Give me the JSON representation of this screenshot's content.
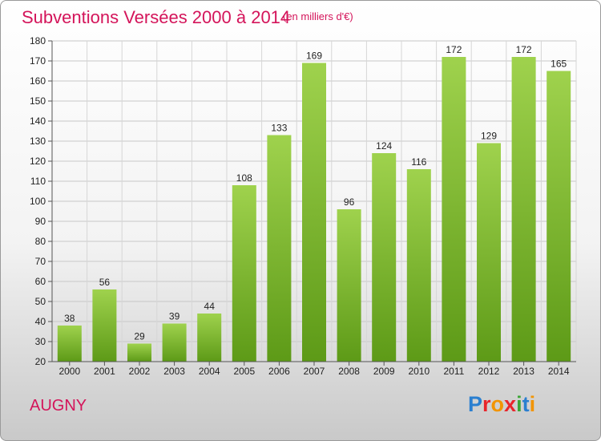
{
  "header": {
    "title": "Subventions Versées 2000 à 2014",
    "subtitle": "(en milliers d'€)"
  },
  "commune": "AUGNY",
  "logo": {
    "text": "Proxiti",
    "letters": [
      "P",
      "r",
      "o",
      "x",
      "i",
      "t",
      "i"
    ]
  },
  "colors": {
    "accent": "#d4145a",
    "bar_top": "#9fd24d",
    "bar_bottom": "#5d9a17",
    "logo": [
      "#2a7fd0",
      "#e8252b",
      "#f29400",
      "#e8252b",
      "#3aa635",
      "#2a7fd0",
      "#f29400"
    ]
  },
  "chart_data": {
    "type": "bar",
    "categories": [
      "2000",
      "2001",
      "2002",
      "2003",
      "2004",
      "2005",
      "2006",
      "2007",
      "2008",
      "2009",
      "2010",
      "2011",
      "2012",
      "2013",
      "2014"
    ],
    "values": [
      38,
      56,
      29,
      39,
      44,
      108,
      133,
      169,
      96,
      124,
      116,
      172,
      129,
      172,
      165
    ],
    "title": "Subventions Versées 2000 à 2014",
    "ylim": [
      20,
      180
    ],
    "yticks": [
      20,
      30,
      40,
      50,
      60,
      70,
      80,
      90,
      100,
      110,
      120,
      130,
      140,
      150,
      160,
      170,
      180
    ],
    "grid": true,
    "data_labels": true
  }
}
